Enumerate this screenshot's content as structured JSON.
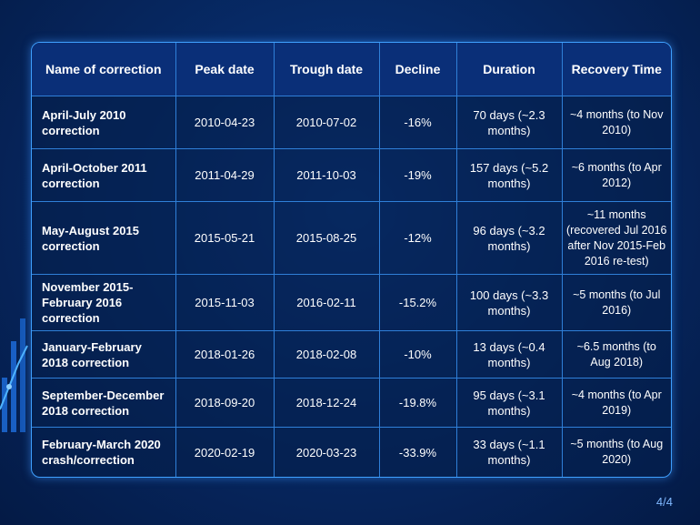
{
  "table": {
    "headers": [
      "Name of correction",
      "Peak date",
      "Trough date",
      "Decline",
      "Duration",
      "Recovery Time"
    ],
    "rows": [
      {
        "name": "April-July 2010 correction",
        "peak": "2010-04-23",
        "trough": "2010-07-02",
        "decline": "-16%",
        "duration": "70 days (~2.3 months)",
        "recovery": "~4 months (to Nov 2010)"
      },
      {
        "name": "April-October 2011 correction",
        "peak": "2011-04-29",
        "trough": "2011-10-03",
        "decline": "-19%",
        "duration": "157 days (~5.2 months)",
        "recovery": "~6 months (to Apr 2012)"
      },
      {
        "name": "May-August 2015 correction",
        "peak": "2015-05-21",
        "trough": "2015-08-25",
        "decline": "-12%",
        "duration": "96 days (~3.2 months)",
        "recovery": "~11 months (recovered Jul 2016 after Nov 2015-Feb 2016 re-test)"
      },
      {
        "name": "November 2015-February 2016 correction",
        "peak": "2015-11-03",
        "trough": "2016-02-11",
        "decline": "-15.2%",
        "duration": "100 days (~3.3 months)",
        "recovery": "~5 months (to Jul 2016)"
      },
      {
        "name": "January-February 2018 correction",
        "peak": "2018-01-26",
        "trough": "2018-02-08",
        "decline": "-10%",
        "duration": "13 days (~0.4 months)",
        "recovery": "~6.5 months (to Aug 2018)"
      },
      {
        "name": "September-December 2018 correction",
        "peak": "2018-09-20",
        "trough": "2018-12-24",
        "decline": "-19.8%",
        "duration": "95 days (~3.1 months)",
        "recovery": "~4 months (to Apr 2019)"
      },
      {
        "name": "February-March 2020 crash/correction",
        "peak": "2020-02-19",
        "trough": "2020-03-23",
        "decline": "-33.9%",
        "duration": "33 days (~1.1 months)",
        "recovery": "~5 months (to Aug 2020)"
      }
    ]
  },
  "page_indicator": "4/4",
  "colors": {
    "accent": "#3fa0ff",
    "background": "#072a66"
  }
}
